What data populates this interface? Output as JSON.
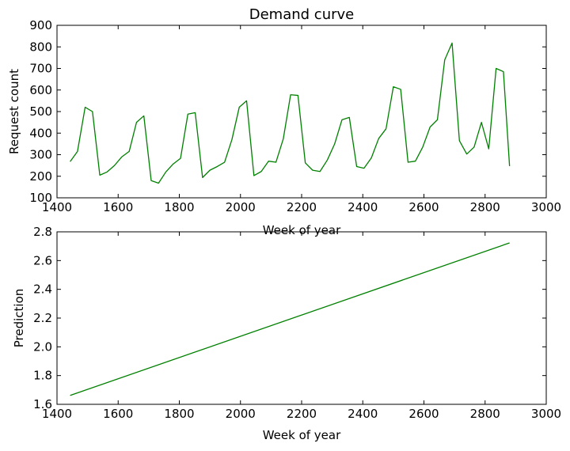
{
  "chart_data": [
    {
      "type": "line",
      "title": "Demand curve",
      "xlabel": "Week of year",
      "ylabel": "Request count",
      "xlim": [
        1400,
        3000
      ],
      "ylim": [
        100,
        900
      ],
      "xticks": [
        1400,
        1600,
        1800,
        2000,
        2200,
        2400,
        2600,
        2800,
        3000
      ],
      "yticks": [
        100,
        200,
        300,
        400,
        500,
        600,
        700,
        800,
        900
      ],
      "grid": false,
      "series": [
        {
          "color": "#008000",
          "x": [
            1443,
            1467,
            1492,
            1516,
            1540,
            1564,
            1588,
            1612,
            1636,
            1660,
            1684,
            1708,
            1732,
            1756,
            1780,
            1804,
            1828,
            1852,
            1876,
            1900,
            1924,
            1948,
            1972,
            1996,
            2020,
            2044,
            2068,
            2092,
            2116,
            2140,
            2164,
            2188,
            2212,
            2236,
            2260,
            2284,
            2308,
            2332,
            2356,
            2380,
            2404,
            2428,
            2452,
            2476,
            2500,
            2524,
            2548,
            2572,
            2596,
            2620,
            2644,
            2668,
            2692,
            2716,
            2740,
            2764,
            2788,
            2812,
            2836,
            2860,
            2880
          ],
          "y": [
            268,
            315,
            520,
            500,
            205,
            220,
            250,
            290,
            315,
            450,
            480,
            180,
            168,
            220,
            257,
            283,
            488,
            495,
            194,
            228,
            245,
            265,
            370,
            520,
            550,
            203,
            222,
            270,
            265,
            373,
            578,
            575,
            262,
            228,
            222,
            275,
            350,
            462,
            473,
            245,
            237,
            285,
            375,
            420,
            615,
            603,
            265,
            270,
            335,
            428,
            462,
            740,
            818,
            365,
            303,
            335,
            450,
            327,
            700,
            685,
            247
          ]
        }
      ]
    },
    {
      "type": "line",
      "title": "",
      "xlabel": "Week of year",
      "ylabel": "Prediction",
      "xlim": [
        1400,
        3000
      ],
      "ylim": [
        1.6,
        2.8
      ],
      "xticks": [
        1400,
        1600,
        1800,
        2000,
        2200,
        2400,
        2600,
        2800,
        3000
      ],
      "yticks": [
        1.6,
        1.8,
        2.0,
        2.2,
        2.4,
        2.6,
        2.8
      ],
      "grid": false,
      "series": [
        {
          "color": "#008000",
          "x": [
            1443,
            2880
          ],
          "y": [
            1.662,
            2.723
          ]
        }
      ]
    }
  ]
}
